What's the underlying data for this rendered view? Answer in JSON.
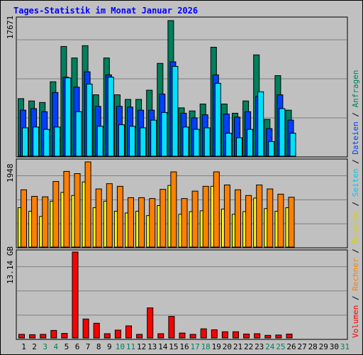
{
  "title": "Tages-Statistik im Monat Januar 2026",
  "panel_labels": {
    "top": "17671",
    "middle": "1948",
    "bottom": "13.14 GB"
  },
  "legend": {
    "volumen": "Volumen",
    "rechner": "Rechner",
    "besuche": "Besuche",
    "seiten": "Seiten",
    "dateien": "Dateien",
    "anfragen": "Anfragen",
    "sep": " / "
  },
  "colors": {
    "anfragen": "#00805c",
    "dateien": "#0040ff",
    "seiten": "#00e0ff",
    "besuche": "#ffff00",
    "rechner": "#ff8000",
    "volumen": "#ff0000",
    "weekday_label": "#000000",
    "weekend_label": "#00805c"
  },
  "chart_data": {
    "type": "bar",
    "categories": [
      "1",
      "2",
      "3",
      "4",
      "5",
      "6",
      "7",
      "8",
      "9",
      "10",
      "11",
      "12",
      "13",
      "14",
      "15",
      "16",
      "17",
      "18",
      "19",
      "20",
      "21",
      "22",
      "23",
      "24",
      "25",
      "26",
      "27",
      "28",
      "29",
      "30",
      "31"
    ],
    "weekend_days": [
      "3",
      "4",
      "10",
      "11",
      "17",
      "18",
      "24",
      "25",
      "31"
    ],
    "panels": [
      {
        "label": "17671",
        "max": 17671,
        "series": [
          {
            "name": "Anfragen",
            "values": [
              7500,
              7200,
              7000,
              9700,
              14300,
              12800,
              14400,
              8000,
              12800,
              8000,
              7400,
              7400,
              8600,
              12100,
              17671,
              6300,
              5900,
              6800,
              14200,
              6800,
              5600,
              7200,
              13200,
              4800,
              10500,
              6000,
              0,
              0,
              0,
              0,
              0
            ]
          },
          {
            "name": "Dateien",
            "values": [
              6000,
              6200,
              5800,
              8300,
              10300,
              9000,
              11000,
              6500,
              10600,
              6500,
              6400,
              6000,
              6000,
              8100,
              12300,
              5600,
              5000,
              5400,
              10600,
              5500,
              5100,
              5800,
              7800,
              3600,
              8000,
              4700,
              0,
              0,
              0,
              0,
              0
            ]
          },
          {
            "name": "Seiten",
            "values": [
              3700,
              3800,
              3500,
              3800,
              10200,
              5800,
              9400,
              3900,
              10300,
              4100,
              3900,
              3700,
              4700,
              5700,
              11700,
              3800,
              3500,
              3700,
              9500,
              3000,
              2400,
              3500,
              8400,
              1900,
              6200,
              3000,
              0,
              0,
              0,
              0,
              0
            ]
          }
        ]
      },
      {
        "label": "1948",
        "max": 1948,
        "series": [
          {
            "name": "Besuche",
            "values": [
              900,
              820,
              700,
              1050,
              1250,
              1180,
              1490,
              900,
              1050,
              820,
              780,
              820,
              720,
              950,
              1410,
              750,
              810,
              830,
              1390,
              870,
              750,
              810,
              1120,
              880,
              820,
              900,
              0,
              0,
              0,
              0,
              0
            ]
          },
          {
            "name": "Rechner",
            "values": [
              1310,
              1160,
              1150,
              1500,
              1730,
              1680,
              1948,
              1330,
              1450,
              1390,
              1130,
              1130,
              1110,
              1320,
              1720,
              1110,
              1280,
              1390,
              1720,
              1420,
              1310,
              1180,
              1420,
              1330,
              1210,
              1140,
              0,
              0,
              0,
              0,
              0
            ]
          }
        ]
      },
      {
        "label": "13.14 GB",
        "max": 13.14,
        "unit": "GB",
        "series": [
          {
            "name": "Volumen",
            "values": [
              0.55,
              0.5,
              0.55,
              1.15,
              0.7,
              13.14,
              2.9,
              2.25,
              0.65,
              1.2,
              1.85,
              0.55,
              4.6,
              0.65,
              3.3,
              0.75,
              0.55,
              1.4,
              1.25,
              0.95,
              0.95,
              0.6,
              0.65,
              0.4,
              0.45,
              0.6,
              0,
              0,
              0,
              0,
              0
            ]
          }
        ]
      }
    ]
  }
}
